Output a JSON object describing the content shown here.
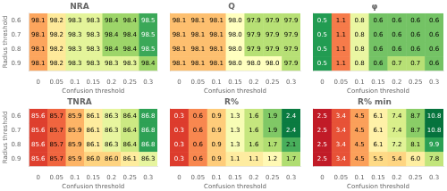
{
  "chart_data": [
    {
      "type": "heatmap",
      "title": "NRA",
      "x_label": "Confusion threshold",
      "y_label": "Radius threshold",
      "categories": [
        "0",
        "0.05",
        "0.1",
        "0.15",
        "0.2",
        "0.25",
        "0.3"
      ],
      "y_categories": [
        "0.6",
        "0.7",
        "0.8",
        "0.9"
      ],
      "cells": [
        [
          98.1,
          98.2,
          98.3,
          98.3,
          98.4,
          98.4,
          98.5
        ],
        [
          98.1,
          98.2,
          98.3,
          98.3,
          98.4,
          98.4,
          98.5
        ],
        [
          98.1,
          98.2,
          98.3,
          98.3,
          98.4,
          98.4,
          98.5
        ],
        [
          98.1,
          98.2,
          98.3,
          98.3,
          98.3,
          98.3,
          98.4
        ]
      ],
      "value_labels": [
        [
          "98.1",
          "98.2",
          "98.3",
          "98.3",
          "98.4",
          "98.4",
          "98.5"
        ],
        [
          "98.1",
          "98.2",
          "98.3",
          "98.3",
          "98.4",
          "98.4",
          "98.5"
        ],
        [
          "98.1",
          "98.2",
          "98.3",
          "98.3",
          "98.4",
          "98.4",
          "98.5"
        ],
        [
          "98.1",
          "98.2",
          "98.3",
          "98.3",
          "98.3",
          "98.3",
          "98.4"
        ]
      ],
      "color_range": [
        97.9,
        98.6
      ],
      "color": "RdYlGn",
      "data_labels": true,
      "grid": false
    },
    {
      "type": "heatmap",
      "title": "Q",
      "x_label": "Confusion threshold",
      "categories": [
        "0",
        "0.05",
        "0.1",
        "0.15",
        "0.2",
        "0.25",
        "0.3"
      ],
      "y_categories": [
        "0.6",
        "0.7",
        "0.8",
        "0.9"
      ],
      "cells": [
        [
          98.1,
          98.1,
          98.1,
          98.0,
          97.9,
          97.9,
          97.9
        ],
        [
          98.1,
          98.1,
          98.1,
          98.0,
          97.9,
          97.9,
          97.9
        ],
        [
          98.1,
          98.1,
          98.1,
          98.0,
          97.9,
          97.9,
          97.9
        ],
        [
          98.1,
          98.1,
          98.1,
          98.0,
          98.0,
          98.0,
          97.9
        ]
      ],
      "value_labels": [
        [
          "98.1",
          "98.1",
          "98.1",
          "98.0",
          "97.9",
          "97.9",
          "97.9"
        ],
        [
          "98.1",
          "98.1",
          "98.1",
          "98.0",
          "97.9",
          "97.9",
          "97.9"
        ],
        [
          "98.1",
          "98.1",
          "98.1",
          "98.0",
          "97.9",
          "97.9",
          "97.9"
        ],
        [
          "98.1",
          "98.1",
          "98.1",
          "98.0",
          "98.0",
          "98.0",
          "97.9"
        ]
      ],
      "color_range": [
        97.7,
        98.3
      ],
      "color": "RdYlGn_r",
      "data_labels": true,
      "grid": false,
      "tick_labels": "x"
    },
    {
      "type": "heatmap",
      "title": "φ",
      "x_label": "Confusion threshold",
      "categories": [
        "0",
        "0.05",
        "0.1",
        "0.15",
        "0.2",
        "0.25",
        "0.3"
      ],
      "y_categories": [
        "0.6",
        "0.7",
        "0.8",
        "0.9"
      ],
      "cells": [
        [
          0.5,
          1.1,
          0.8,
          0.6,
          0.6,
          0.6,
          0.6
        ],
        [
          0.5,
          1.1,
          0.8,
          0.6,
          0.6,
          0.6,
          0.6
        ],
        [
          0.5,
          1.1,
          0.8,
          0.6,
          0.6,
          0.6,
          0.6
        ],
        [
          0.5,
          1.1,
          0.8,
          0.6,
          0.7,
          0.7,
          0.6
        ]
      ],
      "value_labels": [
        [
          "0.5",
          "1.1",
          "0.8",
          "0.6",
          "0.6",
          "0.6",
          "0.6"
        ],
        [
          "0.5",
          "1.1",
          "0.8",
          "0.6",
          "0.6",
          "0.6",
          "0.6"
        ],
        [
          "0.5",
          "1.1",
          "0.8",
          "0.6",
          "0.6",
          "0.6",
          "0.6"
        ],
        [
          "0.5",
          "1.1",
          "0.8",
          "0.6",
          "0.7",
          "0.7",
          "0.6"
        ]
      ],
      "color_range": [
        0.4,
        1.3
      ],
      "color": "RdYlGn_r",
      "data_labels": true,
      "grid": false,
      "tick_labels": "x"
    },
    {
      "type": "heatmap",
      "title": "TNRA",
      "x_label": "Confusion threshold",
      "y_label": "Radius threshold",
      "categories": [
        "0",
        "0.05",
        "0.1",
        "0.15",
        "0.2",
        "0.25",
        "0.3"
      ],
      "y_categories": [
        "0.6",
        "0.7",
        "0.8",
        "0.9"
      ],
      "cells": [
        [
          85.6,
          85.7,
          85.9,
          86.1,
          86.3,
          86.4,
          86.8
        ],
        [
          85.6,
          85.7,
          85.9,
          86.1,
          86.3,
          86.4,
          86.8
        ],
        [
          85.6,
          85.7,
          85.9,
          86.1,
          86.3,
          86.4,
          86.8
        ],
        [
          85.6,
          85.7,
          85.9,
          86.0,
          86.0,
          86.1,
          86.3
        ]
      ],
      "value_labels": [
        [
          "85.6",
          "85.7",
          "85.9",
          "86.1",
          "86.3",
          "86.4",
          "86.8"
        ],
        [
          "85.6",
          "85.7",
          "85.9",
          "86.1",
          "86.3",
          "86.4",
          "86.8"
        ],
        [
          "85.6",
          "85.7",
          "85.9",
          "86.1",
          "86.3",
          "86.4",
          "86.8"
        ],
        [
          "85.6",
          "85.7",
          "85.9",
          "86.0",
          "86.0",
          "86.1",
          "86.3"
        ]
      ],
      "color_range": [
        85.4,
        87.0
      ],
      "color": "RdYlGn",
      "data_labels": true,
      "grid": false
    },
    {
      "type": "heatmap",
      "title": "R%",
      "x_label": "Confusion threshold",
      "categories": [
        "0",
        "0.05",
        "0.1",
        "0.15",
        "0.2",
        "0.25",
        "0.3"
      ],
      "y_categories": [
        "0.6",
        "0.7",
        "0.8",
        "0.9"
      ],
      "cells": [
        [
          0.3,
          0.6,
          0.9,
          1.3,
          1.6,
          1.9,
          2.4
        ],
        [
          0.3,
          0.6,
          0.9,
          1.3,
          1.6,
          1.9,
          2.4
        ],
        [
          0.3,
          0.6,
          0.9,
          1.3,
          1.6,
          1.7,
          2.1
        ],
        [
          0.3,
          0.6,
          0.9,
          1.1,
          1.1,
          1.2,
          1.7
        ]
      ],
      "value_labels": [
        [
          "0.3",
          "0.6",
          "0.9",
          "1.3",
          "1.6",
          "1.9",
          "2.4"
        ],
        [
          "0.3",
          "0.6",
          "0.9",
          "1.3",
          "1.6",
          "1.9",
          "2.4"
        ],
        [
          "0.3",
          "0.6",
          "0.9",
          "1.3",
          "1.6",
          "1.7",
          "2.1"
        ],
        [
          "0.3",
          "0.6",
          "0.9",
          "1.1",
          "1.1",
          "1.2",
          "1.7"
        ]
      ],
      "color_range": [
        0.0,
        2.5
      ],
      "color": "RdYlGn",
      "data_labels": true,
      "grid": false,
      "tick_labels": "x"
    },
    {
      "type": "heatmap",
      "title": "R% min",
      "x_label": "Confusion threshold",
      "categories": [
        "0",
        "0.05",
        "0.1",
        "0.15",
        "0.2",
        "0.25",
        "0.3"
      ],
      "y_categories": [
        "0.6",
        "0.7",
        "0.8",
        "0.9"
      ],
      "cells": [
        [
          2.5,
          3.4,
          4.5,
          6.1,
          7.4,
          8.7,
          10.8
        ],
        [
          2.5,
          3.4,
          4.5,
          6.1,
          7.4,
          8.7,
          10.8
        ],
        [
          2.5,
          3.4,
          4.5,
          6.1,
          7.2,
          8.1,
          9.9
        ],
        [
          2.5,
          3.4,
          4.5,
          5.5,
          5.4,
          6.0,
          7.8
        ]
      ],
      "value_labels": [
        [
          "2.5",
          "3.4",
          "4.5",
          "6.1",
          "7.4",
          "8.7",
          "10.8"
        ],
        [
          "2.5",
          "3.4",
          "4.5",
          "6.1",
          "7.4",
          "8.7",
          "10.8"
        ],
        [
          "2.5",
          "3.4",
          "4.5",
          "6.1",
          "7.2",
          "8.1",
          "9.9"
        ],
        [
          "2.5",
          "3.4",
          "4.5",
          "5.5",
          "5.4",
          "6.0",
          "7.8"
        ]
      ],
      "color_range": [
        2.0,
        11.0
      ],
      "color": "RdYlGn",
      "data_labels": true,
      "grid": false,
      "tick_labels": "x"
    }
  ]
}
